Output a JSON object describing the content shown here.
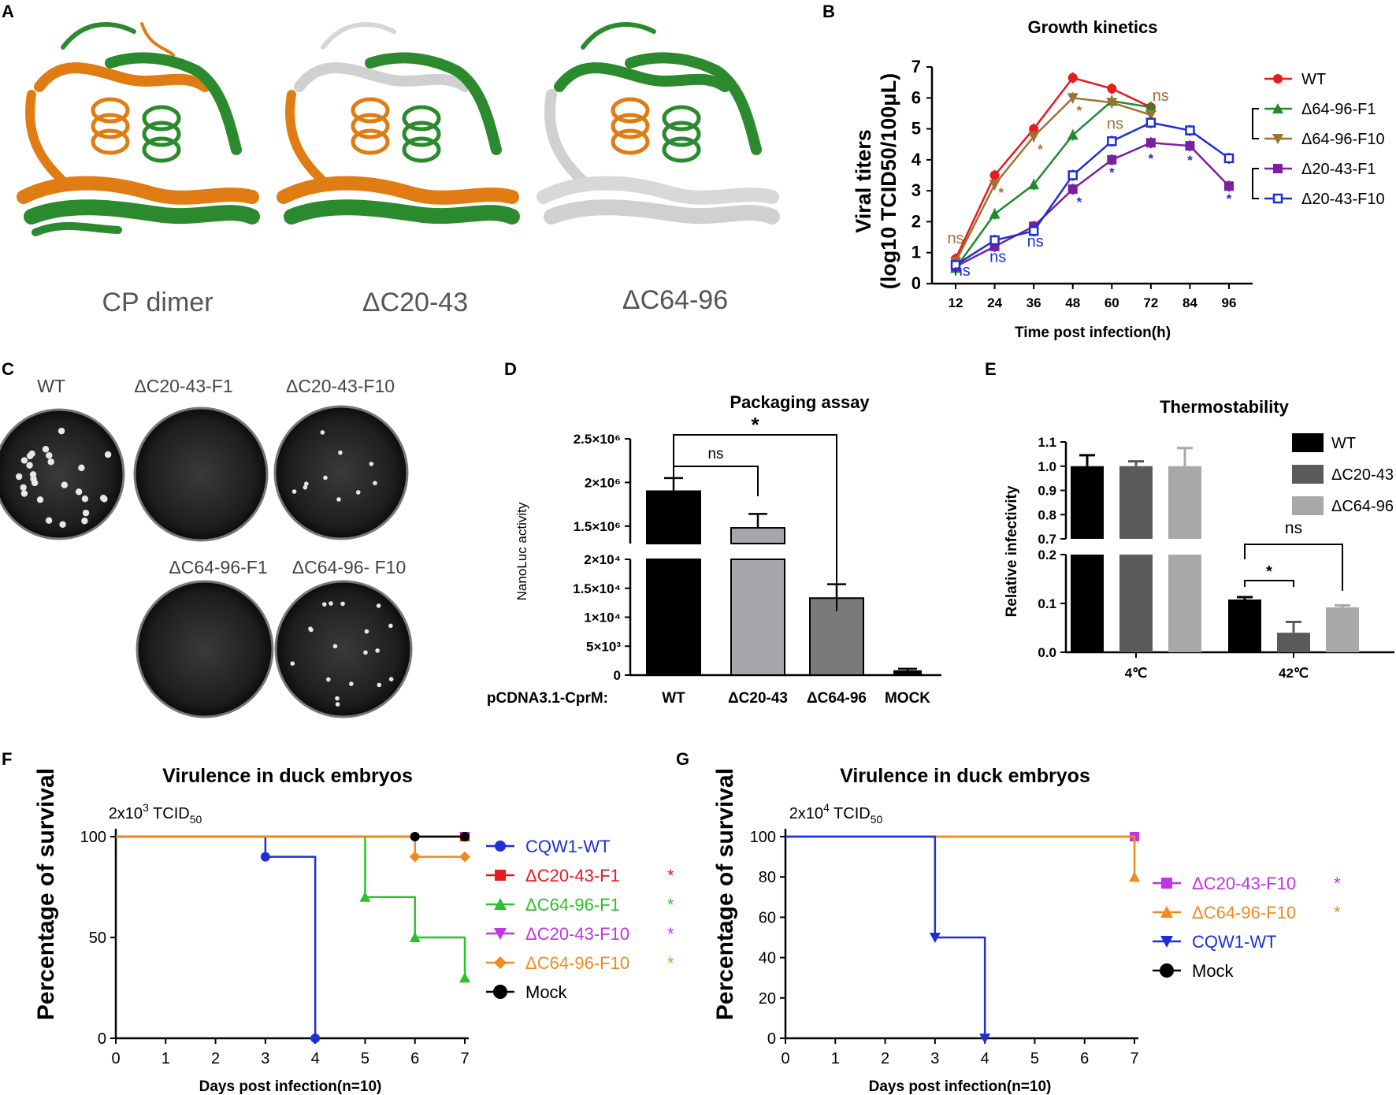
{
  "panels": {
    "A": {
      "label": "A",
      "captions": [
        "CP dimer",
        "ΔC20-43",
        "ΔC64-96"
      ]
    },
    "C": {
      "label": "C",
      "plates": [
        {
          "label": "WT",
          "plaques": "many"
        },
        {
          "label": "ΔC20-43-F1",
          "plaques": "none"
        },
        {
          "label": "ΔC20-43-F10",
          "plaques": "few"
        },
        {
          "label": "ΔC64-96-F1",
          "plaques": "none"
        },
        {
          "label": "ΔC64-96- F10",
          "plaques": "some"
        }
      ]
    }
  },
  "chart_data": [
    {
      "panel": "B",
      "type": "line",
      "title": "Growth kinetics",
      "xlabel": "Time post infection(h)",
      "ylabel": "Viral titers (log10 TCID50/100μL)",
      "ylabel_lines": [
        "Viral titers",
        "(log10 TCID50/100μL)"
      ],
      "x": [
        12,
        24,
        36,
        48,
        60,
        72,
        84,
        96
      ],
      "ylim": [
        0,
        7
      ],
      "yticks": [
        0,
        1,
        2,
        3,
        4,
        5,
        6,
        7
      ],
      "series": [
        {
          "name": "WT",
          "color": "#e8191f",
          "marker": "circle",
          "x": [
            12,
            24,
            36,
            48,
            60,
            72
          ],
          "values": [
            0.8,
            3.5,
            5.0,
            6.65,
            6.3,
            5.7
          ]
        },
        {
          "name": "Δ64-96-F1",
          "color": "#1f8b2b",
          "marker": "triangle-up",
          "x": [
            12,
            24,
            36,
            48,
            60,
            72
          ],
          "values": [
            0.5,
            2.25,
            3.2,
            4.8,
            5.9,
            5.7
          ]
        },
        {
          "name": "Δ64-96-F10",
          "color": "#9b7434",
          "marker": "triangle-down",
          "x": [
            12,
            24,
            36,
            48,
            60,
            72
          ],
          "values": [
            0.7,
            3.2,
            4.75,
            6.0,
            5.85,
            5.45
          ]
        },
        {
          "name": "Δ20-43-F1",
          "color": "#7a1fa2",
          "marker": "square",
          "x": [
            12,
            24,
            36,
            48,
            60,
            72,
            84,
            96
          ],
          "values": [
            0.55,
            1.2,
            1.85,
            3.05,
            4.0,
            4.55,
            4.45,
            3.15
          ]
        },
        {
          "name": "Δ20-43-F10",
          "color": "#1f2fd6",
          "marker": "square-open",
          "x": [
            12,
            24,
            36,
            48,
            60,
            72,
            84,
            96
          ],
          "values": [
            0.6,
            1.4,
            1.7,
            3.5,
            4.6,
            5.2,
            4.95,
            4.05
          ]
        }
      ],
      "annotations": [
        {
          "text": "ns",
          "x": 12,
          "y": 1.3,
          "color": "#9b7434"
        },
        {
          "text": "ns",
          "x": 14,
          "y": 0.25,
          "color": "#1f2fd6"
        },
        {
          "text": "ns",
          "x": 25,
          "y": 0.7,
          "color": "#1f2fd6"
        },
        {
          "text": "ns",
          "x": 36.5,
          "y": 1.2,
          "color": "#1f2fd6"
        },
        {
          "text": "*",
          "x": 26,
          "y": 2.8,
          "color": "#9b7434"
        },
        {
          "text": "*",
          "x": 38,
          "y": 4.2,
          "color": "#9b7434"
        },
        {
          "text": "*",
          "x": 50,
          "y": 5.45,
          "color": "#9b7434"
        },
        {
          "text": "ns",
          "x": 61,
          "y": 5.0,
          "color": "#9b7434"
        },
        {
          "text": "ns",
          "x": 75,
          "y": 5.9,
          "color": "#9b7434"
        },
        {
          "text": "*",
          "x": 50,
          "y": 2.5,
          "color": "#1f2fd6"
        },
        {
          "text": "*",
          "x": 60,
          "y": 3.45,
          "color": "#1f2fd6"
        },
        {
          "text": "*",
          "x": 72,
          "y": 3.9,
          "color": "#1f2fd6"
        },
        {
          "text": "*",
          "x": 84,
          "y": 3.85,
          "color": "#1f2fd6"
        },
        {
          "text": "*",
          "x": 96,
          "y": 2.6,
          "color": "#1f2fd6"
        }
      ]
    },
    {
      "panel": "D",
      "type": "bar",
      "title": "Packaging assay",
      "ylabel": "NanoLuc activity",
      "xlabel": "pCDNA3.1-CprM:",
      "categories": [
        "WT",
        "ΔC20-43",
        "ΔC64-96",
        "MOCK"
      ],
      "values": [
        1900000,
        1480000,
        13300,
        700
      ],
      "errors": [
        150000,
        160000,
        2400,
        400
      ],
      "colors": [
        "#000000",
        "#a7a7ab",
        "#7a7a7a",
        "#000000"
      ],
      "y_break": {
        "lower": [
          0,
          20000
        ],
        "upper": [
          1300000,
          2500000
        ]
      },
      "yticks_lower": [
        "0",
        "5×10³",
        "1×10⁴",
        "1.5×10⁴",
        "2×10⁴"
      ],
      "yticks_upper": [
        "1.5×10⁶",
        "2×10⁶",
        "2.5×10⁶"
      ],
      "significance": [
        {
          "from": "WT",
          "to": "ΔC20-43",
          "text": "ns"
        },
        {
          "from": "WT",
          "to": "ΔC64-96",
          "text": "*"
        }
      ]
    },
    {
      "panel": "E",
      "type": "bar",
      "title": "Thermostability",
      "ylabel": "Relative infectivity",
      "categories": [
        "4℃",
        "42℃"
      ],
      "series": [
        {
          "name": "WT",
          "color": "#000000",
          "values": [
            1.0,
            0.108
          ],
          "errors": [
            0.045,
            0.005
          ]
        },
        {
          "name": "ΔC20-43",
          "color": "#5a5a5a",
          "values": [
            1.0,
            0.04
          ],
          "errors": [
            0.02,
            0.022
          ]
        },
        {
          "name": "ΔC64-96",
          "color": "#a8a8ab",
          "values": [
            1.0,
            0.092
          ],
          "errors": [
            0.075,
            0.004
          ]
        }
      ],
      "y_break": {
        "lower": [
          0,
          0.2
        ],
        "upper": [
          0.7,
          1.1
        ]
      },
      "yticks_lower": [
        "0.0",
        "0.1",
        "0.2"
      ],
      "yticks_upper": [
        "0.7",
        "0.8",
        "0.9",
        "1.0",
        "1.1"
      ],
      "significance": [
        {
          "from": "WT",
          "to": "ΔC20-43",
          "text": "*"
        },
        {
          "from": "WT",
          "to": "ΔC64-96",
          "text": "ns"
        }
      ]
    },
    {
      "panel": "F",
      "type": "line",
      "subtype": "kaplan-meier",
      "title": "Virulence in duck embryos",
      "dose": "2x10",
      "dose_exp": "3",
      "dose_unit": "TCID",
      "dose_sub": "50",
      "xlabel": "Days post infection(n=10)",
      "ylabel": "Percentage of survival",
      "xlim": [
        0,
        7
      ],
      "ylim": [
        0,
        100
      ],
      "xticks": [
        0,
        1,
        2,
        3,
        4,
        5,
        6,
        7
      ],
      "yticks": [
        0,
        50,
        100
      ],
      "series": [
        {
          "name": "CQW1-WT",
          "color": "#1f2fd6",
          "marker": "circle",
          "steps": [
            [
              0,
              100
            ],
            [
              3,
              90
            ],
            [
              4,
              0
            ]
          ],
          "sig": ""
        },
        {
          "name": "ΔC20-43-F1",
          "color": "#e8191f",
          "marker": "square",
          "steps": [
            [
              0,
              100
            ],
            [
              7,
              100
            ]
          ],
          "sig": "*"
        },
        {
          "name": "ΔC64-96-F1",
          "color": "#2bc22b",
          "marker": "triangle-up",
          "steps": [
            [
              0,
              100
            ],
            [
              5,
              70
            ],
            [
              6,
              50
            ],
            [
              7,
              30
            ]
          ],
          "sig": "*"
        },
        {
          "name": "ΔC20-43-F10",
          "color": "#c034e6",
          "marker": "triangle-down",
          "steps": [
            [
              0,
              100
            ],
            [
              7,
              100
            ]
          ],
          "sig": "*"
        },
        {
          "name": "ΔC64-96-F10",
          "color": "#f08a1e",
          "marker": "diamond",
          "steps": [
            [
              0,
              100
            ],
            [
              6,
              90
            ],
            [
              7,
              90
            ]
          ],
          "sig": "*"
        },
        {
          "name": "Mock",
          "color": "#000000",
          "marker": "circle",
          "steps": [
            [
              6,
              100
            ],
            [
              7,
              100
            ]
          ],
          "sig": ""
        }
      ]
    },
    {
      "panel": "G",
      "type": "line",
      "subtype": "kaplan-meier",
      "title": "Virulence in duck embryos",
      "dose": "2x10",
      "dose_exp": "4",
      "dose_unit": "TCID",
      "dose_sub": "50",
      "xlabel": "Days post infection(n=10)",
      "ylabel": "Percentage of survival",
      "xlim": [
        0,
        7
      ],
      "ylim": [
        0,
        100
      ],
      "xticks": [
        0,
        1,
        2,
        3,
        4,
        5,
        6,
        7
      ],
      "yticks": [
        0,
        20,
        40,
        60,
        80,
        100
      ],
      "series": [
        {
          "name": "ΔC20-43-F10",
          "color": "#c034e6",
          "marker": "square",
          "steps": [
            [
              0,
              100
            ],
            [
              7,
              100
            ]
          ],
          "sig": "*"
        },
        {
          "name": "ΔC64-96-F10",
          "color": "#f08a1e",
          "marker": "triangle-up",
          "steps": [
            [
              0,
              100
            ],
            [
              7,
              80
            ]
          ],
          "sig": "*"
        },
        {
          "name": "CQW1-WT",
          "color": "#1f2fd6",
          "marker": "triangle-down",
          "steps": [
            [
              0,
              100
            ],
            [
              3,
              50
            ],
            [
              4,
              0
            ]
          ],
          "sig": ""
        },
        {
          "name": "Mock",
          "color": "#000000",
          "marker": "circle",
          "steps": [],
          "sig": ""
        }
      ]
    }
  ]
}
